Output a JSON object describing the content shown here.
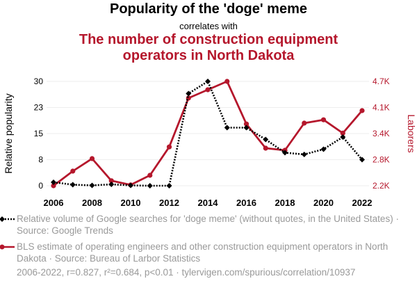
{
  "header": {
    "title": "Popularity of the 'doge' meme",
    "subtitle": "correlates with",
    "title2_line1": "The number of construction equipment",
    "title2_line2": "operators in North Dakota"
  },
  "legend": {
    "series1": "Relative volume of Google searches for 'doge meme' (without quotes, in the United States) · Source: Google Trends",
    "series2": "BLS estimate of operating engineers and other construction equipment operators in North Dakota · Source: Bureau of Larbor Statistics"
  },
  "footer": "2006-2022, r=0.827, r²=0.684, p<0.01 · tylervigen.com/spurious/correlation/10937",
  "colors": {
    "series1": "#000000",
    "series2": "#b5172c",
    "grid": "#eeeeee"
  },
  "chart_data": {
    "type": "line",
    "x": [
      2006,
      2007,
      2008,
      2009,
      2010,
      2011,
      2012,
      2013,
      2014,
      2015,
      2016,
      2017,
      2018,
      2019,
      2020,
      2021,
      2022
    ],
    "xticks": [
      "2006",
      "2008",
      "2010",
      "2012",
      "2014",
      "2016",
      "2018",
      "2020",
      "2022"
    ],
    "y_left": {
      "label": "Relative popularity",
      "ticks": [
        "0",
        "8",
        "15",
        "23",
        "30"
      ],
      "tick_values": [
        0,
        7.5,
        15,
        22.5,
        30
      ],
      "range": [
        0,
        30
      ]
    },
    "y_right": {
      "label": "Laborers",
      "ticks": [
        "2.2K",
        "2.8K",
        "3.4K",
        "4.1K",
        "4.7K"
      ],
      "tick_values": [
        2200,
        2825,
        3450,
        4075,
        4700
      ],
      "range": [
        2200,
        4700
      ]
    },
    "series": [
      {
        "axis": "left",
        "style": "dotted",
        "values": [
          1,
          0.3,
          0.1,
          0.4,
          0.1,
          0,
          0,
          26.5,
          30,
          16.7,
          16.7,
          13.3,
          9.5,
          9,
          10.5,
          14,
          7.5
        ]
      },
      {
        "axis": "right",
        "style": "solid",
        "values": [
          2200,
          2550,
          2850,
          2320,
          2220,
          2450,
          3130,
          4300,
          4500,
          4700,
          3680,
          3100,
          3050,
          3700,
          3780,
          3460,
          4000
        ]
      }
    ]
  }
}
